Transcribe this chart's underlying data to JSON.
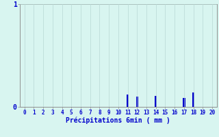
{
  "categories": [
    0,
    1,
    2,
    3,
    4,
    5,
    6,
    7,
    8,
    9,
    10,
    11,
    12,
    13,
    14,
    15,
    16,
    17,
    18,
    19,
    20
  ],
  "values": [
    0,
    0,
    0,
    0,
    0,
    0,
    0,
    0,
    0,
    0,
    0,
    0.12,
    0.1,
    0,
    0.11,
    0,
    0,
    0.09,
    0.14,
    0,
    0
  ],
  "bar_color": "#0000cc",
  "background_color": "#d8f5f0",
  "grid_color": "#b8d8d4",
  "axis_color": "#909090",
  "xlabel": "Précipitations 6min ( mm )",
  "xlabel_color": "#0000cc",
  "tick_color": "#0000cc",
  "ylim": [
    0,
    1.0
  ],
  "xlim": [
    -0.5,
    20.5
  ],
  "yticks": [
    0,
    1
  ],
  "bar_width": 0.25
}
